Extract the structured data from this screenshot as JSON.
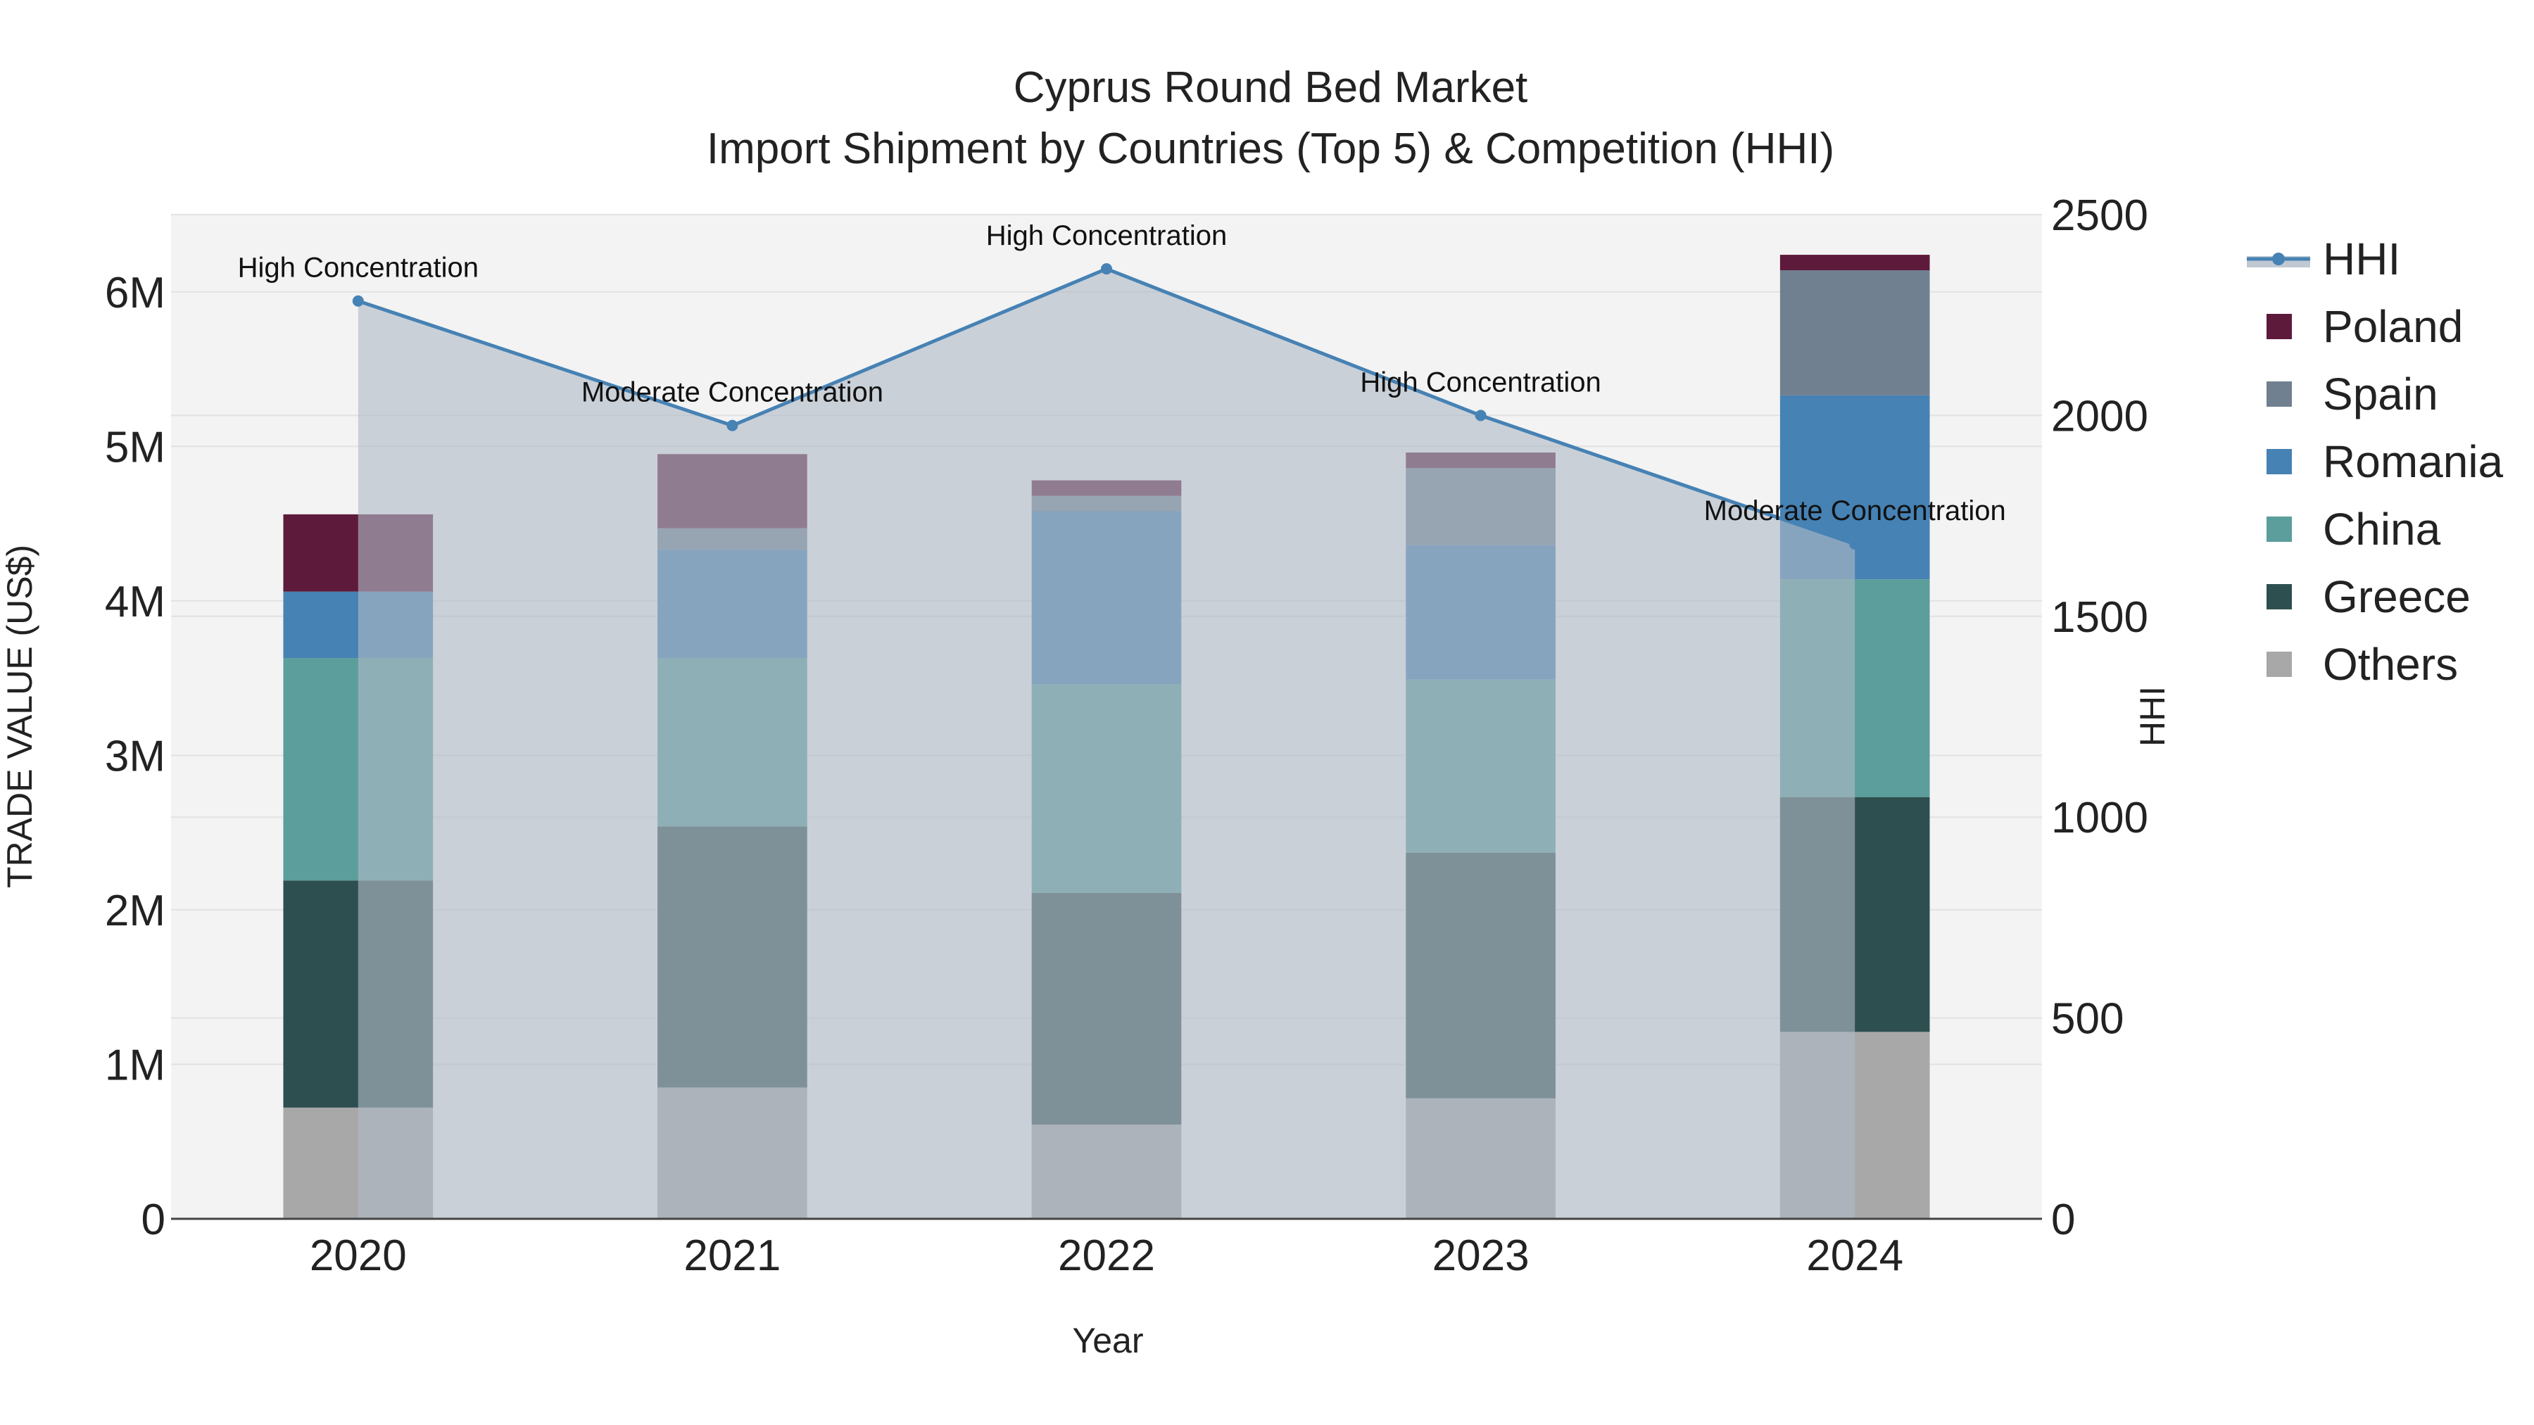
{
  "chart_data": {
    "type": "bar",
    "title": "Cyprus Round Bed Market",
    "subtitle": "Import Shipment by Countries (Top 5) & Competition (HHI)",
    "xlabel": "Year",
    "ylabel": "TRADE VALUE (US$)",
    "y2label": "HHI",
    "categories": [
      "2020",
      "2021",
      "2022",
      "2023",
      "2024"
    ],
    "ylim": [
      0,
      6500000
    ],
    "y_ticks": [
      0,
      1000000,
      2000000,
      3000000,
      4000000,
      5000000,
      6000000
    ],
    "y_tick_labels": [
      "0",
      "1M",
      "2M",
      "3M",
      "4M",
      "5M",
      "6M"
    ],
    "y2lim": [
      0,
      2500
    ],
    "y2_ticks": [
      0,
      500,
      1000,
      1500,
      2000,
      2500
    ],
    "y2_tick_labels": [
      "0",
      "500",
      "1000",
      "1500",
      "2000",
      "2500"
    ],
    "series": [
      {
        "name": "Others",
        "color": "#a8a8a8",
        "values": [
          720000,
          850000,
          610000,
          780000,
          1210000
        ]
      },
      {
        "name": "Greece",
        "color": "#2e4f4f",
        "values": [
          1470000,
          1690000,
          1500000,
          1590000,
          1520000
        ]
      },
      {
        "name": "China",
        "color": "#5b9e9c",
        "values": [
          1440000,
          1090000,
          1350000,
          1120000,
          1410000
        ]
      },
      {
        "name": "Romania",
        "color": "#4682b4",
        "values": [
          430000,
          700000,
          1120000,
          870000,
          1190000
        ]
      },
      {
        "name": "Spain",
        "color": "#708090",
        "values": [
          0,
          140000,
          100000,
          500000,
          810000
        ]
      },
      {
        "name": "Poland",
        "color": "#5e1a3a",
        "values": [
          500000,
          480000,
          100000,
          100000,
          100000
        ]
      }
    ],
    "hhi": {
      "name": "HHI",
      "color": "#4682b4",
      "values": [
        2285,
        1975,
        2365,
        2000,
        1680
      ],
      "annotations": [
        "High Concentration",
        "Moderate Concentration",
        "High Concentration",
        "High Concentration",
        "Moderate Concentration"
      ]
    },
    "legend": [
      "HHI",
      "Poland",
      "Spain",
      "Romania",
      "China",
      "Greece",
      "Others"
    ]
  }
}
